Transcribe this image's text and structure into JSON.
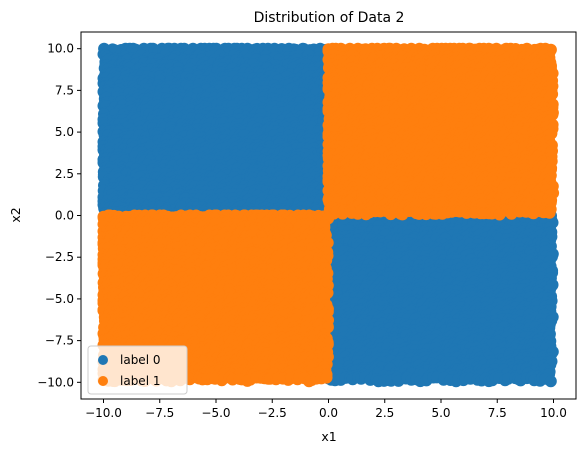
{
  "chart_data": {
    "type": "scatter",
    "title": "Distribution of Data 2",
    "xlabel": "x1",
    "ylabel": "x2",
    "xlim": [
      -11,
      11
    ],
    "ylim": [
      -11,
      11
    ],
    "xticks": [
      -10.0,
      -7.5,
      -5.0,
      -2.5,
      0.0,
      2.5,
      5.0,
      7.5,
      10.0
    ],
    "yticks": [
      -10.0,
      -7.5,
      -5.0,
      -2.5,
      0.0,
      2.5,
      5.0,
      7.5,
      10.0
    ],
    "xtick_labels": [
      "−10.0",
      "−7.5",
      "−5.0",
      "−2.5",
      "0.0",
      "2.5",
      "5.0",
      "7.5",
      "10.0"
    ],
    "ytick_labels": [
      "−10.0",
      "−7.5",
      "−5.0",
      "−2.5",
      "0.0",
      "2.5",
      "5.0",
      "7.5",
      "10.0"
    ],
    "grid": false,
    "legend_position": "lower-left",
    "series": [
      {
        "name": "label 0",
        "color": "#1f77b4",
        "regions": [
          {
            "x": [
              -10,
              0
            ],
            "y": [
              0,
              10
            ]
          },
          {
            "x": [
              0,
              10
            ],
            "y": [
              -10,
              0
            ]
          }
        ]
      },
      {
        "name": "label 1",
        "color": "#ff7f0e",
        "regions": [
          {
            "x": [
              0,
              10
            ],
            "y": [
              0,
              10
            ]
          },
          {
            "x": [
              -10,
              0
            ],
            "y": [
              -10,
              0
            ]
          }
        ]
      }
    ]
  }
}
